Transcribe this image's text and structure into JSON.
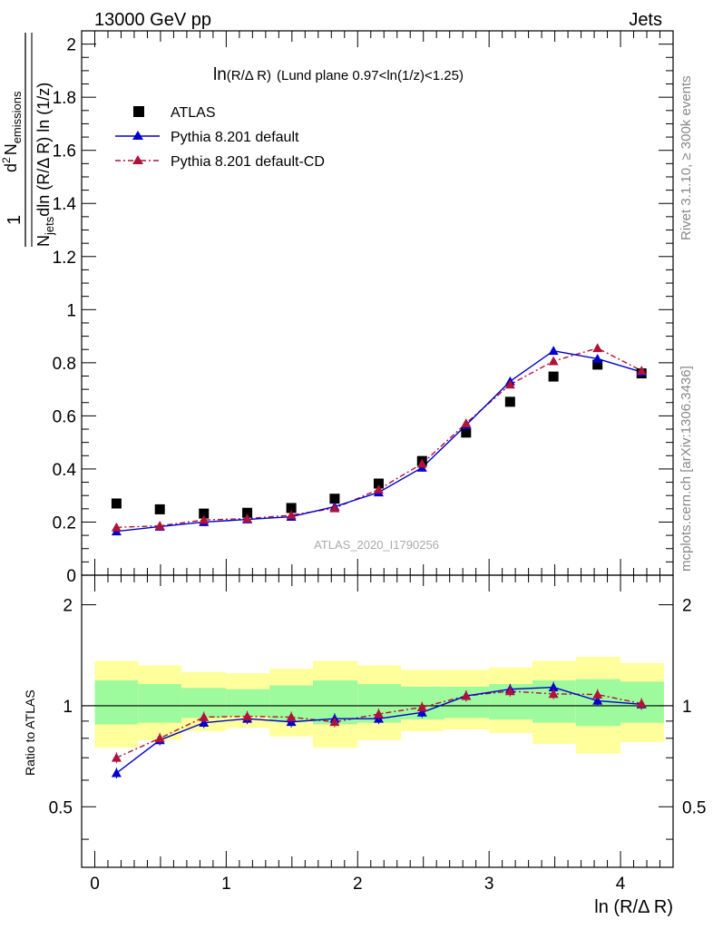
{
  "header": {
    "left": "13000 GeV pp",
    "right": "Jets"
  },
  "side": {
    "rivet": "Rivet 3.1.10, ≥ 300k events",
    "mcplots": "mcplots.cern.ch [arXiv:1306.3436]"
  },
  "watermark": "ATLAS_2020_I1790256",
  "title": {
    "main": "ln",
    "paren": "(R/Δ R)",
    "rest": "(Lund plane 0.97<ln(1/z)<1.25)"
  },
  "ylabel": {
    "one": "1",
    "d2": "d",
    "sup2": "2",
    "n": "N",
    "emissions": "emissions",
    "denN": "N",
    "jets": "jets",
    "rest": "dln (R/Δ R) ln (1/z)"
  },
  "ratio_ylabel": "Ratio to ATLAS",
  "xlabel": "ln (R/Δ R)",
  "colors": {
    "atlas": "#000000",
    "pythia_default": "#0000cc",
    "pythia_cd": "#b0123a",
    "band_green": "#9dfa9d",
    "band_yellow": "#ffff9c"
  },
  "chart_data": [
    {
      "type": "scatter",
      "panel": "main",
      "x": [
        0.165,
        0.495,
        0.83,
        1.16,
        1.495,
        1.825,
        2.16,
        2.49,
        2.825,
        3.16,
        3.49,
        3.825,
        4.16
      ],
      "ylim": [
        0,
        2.05
      ],
      "xlim": [
        -0.1,
        4.4
      ],
      "yticks": [
        0,
        0.2,
        0.4,
        0.6,
        0.8,
        1,
        1.2,
        1.4,
        1.6,
        1.8,
        2
      ],
      "ytick_labels": [
        "0",
        "0.2",
        "0.4",
        "0.6",
        "0.8",
        "1",
        "1.2",
        "1.4",
        "1.6",
        "1.8",
        "2"
      ],
      "series": [
        {
          "name": "ATLAS",
          "style": "square",
          "values": [
            0.27,
            0.248,
            0.232,
            0.235,
            0.253,
            0.288,
            0.345,
            0.43,
            0.537,
            0.653,
            0.748,
            0.793,
            0.76
          ]
        },
        {
          "name": "Pythia 8.201 default",
          "style": "solid-triangle",
          "values": [
            0.165,
            0.183,
            0.2,
            0.21,
            0.22,
            0.258,
            0.312,
            0.405,
            0.565,
            0.73,
            0.845,
            0.815,
            0.765
          ]
        },
        {
          "name": "Pythia 8.201 default-CD",
          "style": "dashdot-triangle",
          "values": [
            0.18,
            0.186,
            0.208,
            0.213,
            0.226,
            0.252,
            0.323,
            0.42,
            0.572,
            0.718,
            0.806,
            0.855,
            0.77
          ]
        }
      ],
      "legend_position": "top-left"
    },
    {
      "type": "scatter",
      "panel": "ratio",
      "x": [
        0.165,
        0.495,
        0.83,
        1.16,
        1.495,
        1.825,
        2.16,
        2.49,
        2.825,
        3.16,
        3.49,
        3.825,
        4.16
      ],
      "ylim": [
        0.33,
        2.45
      ],
      "xlim": [
        -0.1,
        4.4
      ],
      "yticks": [
        0.5,
        1,
        2
      ],
      "ytick_labels": [
        "0.5",
        "1",
        "2"
      ],
      "xticks": [
        0,
        1,
        2,
        3,
        4
      ],
      "xtick_labels": [
        "0",
        "1",
        "2",
        "3",
        "4"
      ],
      "reference_line": 1,
      "bands": {
        "bin_edges": [
          0.0,
          0.33,
          0.66,
          1.0,
          1.33,
          1.66,
          2.0,
          2.33,
          2.66,
          3.0,
          3.33,
          3.66,
          4.0,
          4.33
        ],
        "yellow_upper": [
          1.36,
          1.32,
          1.26,
          1.25,
          1.29,
          1.36,
          1.32,
          1.28,
          1.28,
          1.3,
          1.36,
          1.4,
          1.34
        ],
        "yellow_lower": [
          0.75,
          0.79,
          0.84,
          0.86,
          0.81,
          0.75,
          0.79,
          0.84,
          0.85,
          0.83,
          0.77,
          0.72,
          0.78
        ],
        "green_upper": [
          1.19,
          1.16,
          1.13,
          1.12,
          1.15,
          1.19,
          1.16,
          1.14,
          1.14,
          1.16,
          1.19,
          1.2,
          1.18
        ],
        "green_lower": [
          0.88,
          0.89,
          0.92,
          0.93,
          0.9,
          0.88,
          0.89,
          0.91,
          0.92,
          0.91,
          0.89,
          0.87,
          0.89
        ]
      },
      "series": [
        {
          "name": "Pythia 8.201 default",
          "style": "solid-triangle",
          "values": [
            0.63,
            0.79,
            0.89,
            0.915,
            0.895,
            0.915,
            0.915,
            0.955,
            1.07,
            1.12,
            1.135,
            1.035,
            1.01
          ]
        },
        {
          "name": "Pythia 8.201 default-CD",
          "style": "dashdot-triangle",
          "values": [
            0.7,
            0.8,
            0.925,
            0.93,
            0.925,
            0.895,
            0.945,
            0.99,
            1.07,
            1.105,
            1.085,
            1.08,
            1.015
          ]
        }
      ]
    }
  ]
}
